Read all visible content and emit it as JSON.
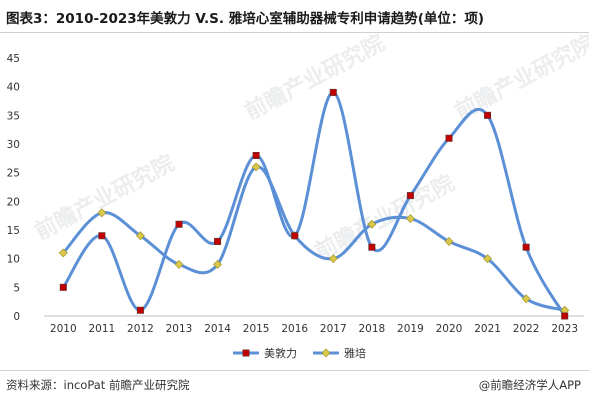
{
  "title": "图表3：2010-2023年美敦力 V.S. 雅培心室辅助器械专利申请趋势(单位：项)",
  "source": "资料来源：incoPat 前瞻产业研究院",
  "brand": "@前瞻经济学人APP",
  "watermark": "前瞻产业研究院",
  "colors": {
    "line": "#5b8fd6",
    "medtronic_marker": "#c00000",
    "abbott_marker": "#d9c84a"
  },
  "chart_data": {
    "type": "line",
    "categories": [
      "2010",
      "2011",
      "2012",
      "2013",
      "2014",
      "2015",
      "2016",
      "2017",
      "2018",
      "2019",
      "2020",
      "2021",
      "2022",
      "2023"
    ],
    "ylim": [
      0,
      45
    ],
    "yticks": [
      0,
      5,
      10,
      15,
      20,
      25,
      30,
      35,
      40,
      45
    ],
    "grid": false,
    "smooth": true,
    "legend_position": "bottom",
    "series": [
      {
        "name": "美敦力",
        "marker": "square",
        "values": [
          5,
          14,
          1,
          16,
          13,
          28,
          14,
          39,
          12,
          21,
          31,
          35,
          12,
          0
        ]
      },
      {
        "name": "雅培",
        "marker": "diamond",
        "values": [
          11,
          18,
          14,
          9,
          9,
          26,
          14,
          10,
          16,
          17,
          13,
          10,
          3,
          1
        ]
      }
    ]
  }
}
